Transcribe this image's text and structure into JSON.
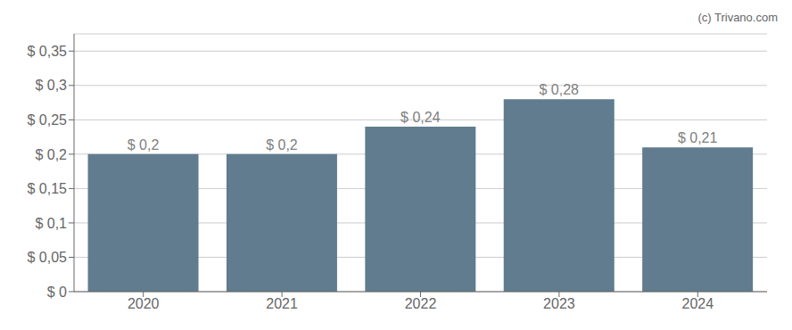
{
  "chart_data": {
    "type": "bar",
    "categories": [
      "2020",
      "2021",
      "2022",
      "2023",
      "2024"
    ],
    "values": [
      0.2,
      0.2,
      0.24,
      0.28,
      0.21
    ],
    "value_labels": [
      "$ 0,2",
      "$ 0,2",
      "$ 0,24",
      "$ 0,28",
      "$ 0,21"
    ],
    "data_labels": true,
    "color": "#607c8e",
    "ylim": [
      0,
      0.375
    ],
    "yticks": [
      {
        "value": 0,
        "label": "$ 0"
      },
      {
        "value": 0.05,
        "label": "$ 0,05"
      },
      {
        "value": 0.1,
        "label": "$ 0,1"
      },
      {
        "value": 0.15,
        "label": "$ 0,15"
      },
      {
        "value": 0.2,
        "label": "$ 0,2"
      },
      {
        "value": 0.25,
        "label": "$ 0,25"
      },
      {
        "value": 0.3,
        "label": "$ 0,3"
      },
      {
        "value": 0.35,
        "label": "$ 0,35"
      }
    ],
    "grid": true,
    "annotations": [
      "(c) Trivano.com"
    ]
  }
}
